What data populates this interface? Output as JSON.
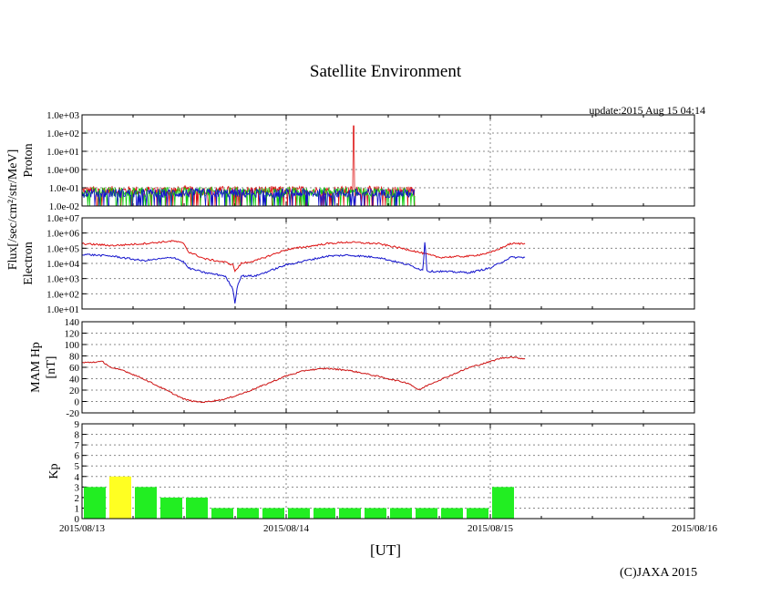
{
  "title": "Satellite Environment",
  "update": "update:2015 Aug 15 04:14",
  "xlabel": "[UT]",
  "copyright": "(C)JAXA 2015",
  "flux_label": "Flux[/sec/cm²/str/MeV]",
  "chart_data": [
    {
      "id": "proton",
      "type": "line",
      "ylabel": "Proton",
      "yscale": "log",
      "ylim": [
        0.01,
        1000
      ],
      "yticks": [
        "1.0e-02",
        "1.0e-01",
        "1.0e+00",
        "1.0e+01",
        "1.0e+02",
        "1.0e+03"
      ],
      "x_days": [
        0,
        1.63
      ],
      "series": [
        {
          "name": "red channel",
          "color": "#dd1111",
          "baseline": 0.07,
          "spike": {
            "x": 1.33,
            "value": 250
          }
        },
        {
          "name": "green channel",
          "color": "#11cc11",
          "baseline": 0.06
        },
        {
          "name": "blue channel",
          "color": "#1111cc",
          "baseline": 0.05
        }
      ]
    },
    {
      "id": "electron",
      "type": "line",
      "ylabel": "Electron",
      "yscale": "log",
      "ylim": [
        10,
        10000000
      ],
      "yticks": [
        "1.0e+01",
        "1.0e+02",
        "1.0e+03",
        "1.0e+04",
        "1.0e+05",
        "1.0e+06",
        "1.0e+07"
      ],
      "series": [
        {
          "name": "red channel",
          "color": "#dd1111",
          "x": [
            0,
            0.15,
            0.3,
            0.45,
            0.5,
            0.52,
            0.6,
            0.7,
            0.74,
            0.75,
            0.78,
            0.85,
            1.0,
            1.2,
            1.3,
            1.45,
            1.6,
            1.75,
            1.9,
            2.0,
            2.1,
            2.17
          ],
          "y": [
            200000,
            150000,
            200000,
            300000,
            200000,
            60000,
            20000,
            12000,
            8000,
            3000,
            10000,
            15000,
            80000,
            200000,
            250000,
            200000,
            80000,
            25000,
            30000,
            50000,
            200000,
            200000
          ]
        },
        {
          "name": "blue channel",
          "color": "#1111cc",
          "x": [
            0,
            0.15,
            0.3,
            0.45,
            0.5,
            0.52,
            0.6,
            0.7,
            0.74,
            0.75,
            0.76,
            0.78,
            0.85,
            1.0,
            1.2,
            1.3,
            1.45,
            1.6,
            1.67,
            1.68,
            1.69,
            1.75,
            1.9,
            2.0,
            2.1,
            2.17
          ],
          "y": [
            40000,
            30000,
            15000,
            25000,
            12000,
            5000,
            2500,
            1500,
            200,
            20,
            300,
            1500,
            1500,
            8000,
            30000,
            35000,
            25000,
            8000,
            3500,
            400000,
            3000,
            3000,
            2500,
            5000,
            25000,
            25000
          ]
        }
      ]
    },
    {
      "id": "hp",
      "type": "line",
      "ylabel": "MAM Hp",
      "ylabel2": "[nT]",
      "ylim": [
        -20,
        140
      ],
      "yticks": [
        "-20",
        "0",
        "20",
        "40",
        "60",
        "80",
        "100",
        "120",
        "140"
      ],
      "series": [
        {
          "name": "Hp",
          "color": "#cc1111",
          "x": [
            0,
            0.1,
            0.15,
            0.2,
            0.3,
            0.4,
            0.5,
            0.55,
            0.6,
            0.7,
            0.8,
            0.9,
            1.0,
            1.1,
            1.2,
            1.3,
            1.4,
            1.5,
            1.6,
            1.65,
            1.7,
            1.8,
            1.9,
            2.0,
            2.05,
            2.1,
            2.17
          ],
          "y": [
            68,
            70,
            58,
            55,
            40,
            22,
            4,
            0,
            -1,
            4,
            16,
            30,
            45,
            55,
            58,
            55,
            48,
            40,
            32,
            20,
            30,
            45,
            60,
            70,
            76,
            78,
            75
          ]
        }
      ]
    },
    {
      "id": "kp",
      "type": "bar",
      "ylabel": "Kp",
      "ylim": [
        0,
        9
      ],
      "yticks": [
        "0",
        "1",
        "2",
        "3",
        "4",
        "5",
        "6",
        "7",
        "8",
        "9"
      ],
      "bar_width_days": 0.125,
      "values": [
        3,
        4,
        3,
        2,
        2,
        1,
        1,
        1,
        1,
        1,
        1,
        1,
        1,
        1,
        1,
        1,
        3
      ],
      "colors": [
        "#22ee22",
        "#ffff22",
        "#22ee22",
        "#22ee22",
        "#22ee22",
        "#22ee22",
        "#22ee22",
        "#22ee22",
        "#22ee22",
        "#22ee22",
        "#22ee22",
        "#22ee22",
        "#22ee22",
        "#22ee22",
        "#22ee22",
        "#22ee22",
        "#22ee22"
      ]
    }
  ],
  "x_axis": {
    "range_days": [
      0,
      3
    ],
    "tick_labels": [
      "2015/08/13",
      "2015/08/14",
      "2015/08/15",
      "2015/08/16"
    ]
  }
}
